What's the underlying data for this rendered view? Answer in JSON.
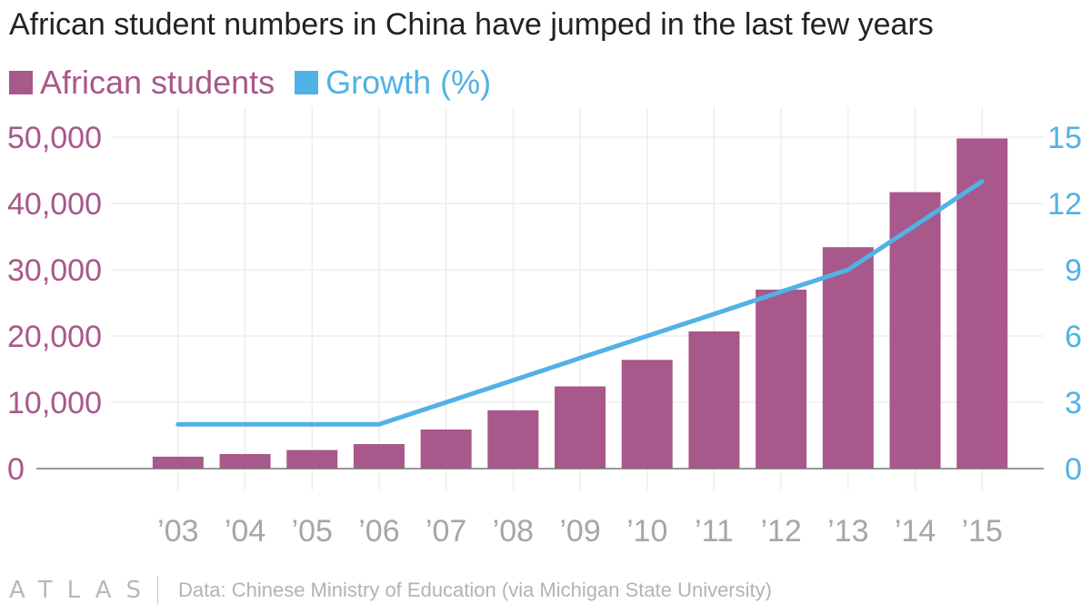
{
  "title": "African student numbers in China have jumped in the last few years",
  "legend": [
    {
      "label": "African students",
      "color": "#a8588a"
    },
    {
      "label": "Growth (%)",
      "color": "#51b2e5"
    }
  ],
  "footer": {
    "brand": "ATLAS",
    "source": "Data: Chinese Ministry of Education (via Michigan State University)"
  },
  "colors": {
    "bar": "#a8588a",
    "line": "#51b2e5",
    "grid": "#e6e6e6",
    "xtick": "#a6a6a6"
  },
  "chart_data": {
    "type": "bar+line",
    "title": "African student numbers in China have jumped in the last few years",
    "categories": [
      "’03",
      "’04",
      "’05",
      "’06",
      "’07",
      "’08",
      "’09",
      "’10",
      "’11",
      "’12",
      "’13",
      "’14",
      "’15"
    ],
    "series": [
      {
        "name": "African students",
        "type": "bar",
        "axis": "left",
        "values": [
          1800,
          2200,
          2800,
          3700,
          5900,
          8800,
          12400,
          16400,
          20700,
          27000,
          33400,
          41700,
          49800
        ]
      },
      {
        "name": "Growth (%)",
        "type": "line",
        "axis": "right",
        "values": [
          2,
          2,
          2,
          2,
          3,
          4,
          5,
          6,
          7,
          8,
          9,
          11,
          13
        ]
      }
    ],
    "y_left": {
      "ticks": [
        0,
        10000,
        20000,
        30000,
        40000,
        50000
      ],
      "tick_labels": [
        "0",
        "10,000",
        "20,000",
        "30,000",
        "40,000",
        "50,000"
      ],
      "ylim": [
        0,
        50000
      ]
    },
    "y_right": {
      "ticks": [
        0,
        3,
        6,
        9,
        12,
        15
      ],
      "tick_labels": [
        "0",
        "3",
        "6",
        "9",
        "12",
        "15"
      ],
      "ylim": [
        0,
        15
      ]
    },
    "grid": true,
    "legend_position": "top-left"
  }
}
